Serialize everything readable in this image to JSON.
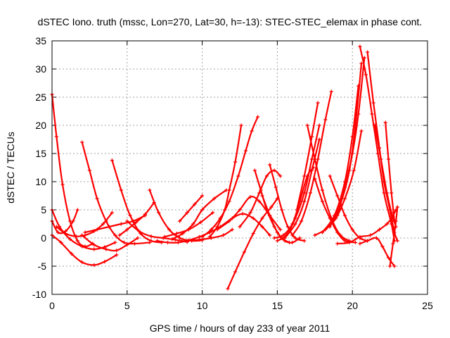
{
  "chart_data": {
    "type": "scatter",
    "title": "dSTEC Iono. truth (mssc, Lon=270, Lat=30, h=-13): STEC-STEC_elemax in phase cont.",
    "xlabel": "GPS time / hours of day 233 of year 2011",
    "ylabel": "dSTEC  / TECUs",
    "xlim": [
      0,
      25
    ],
    "ylim": [
      -10,
      35
    ],
    "xticks": [
      0,
      5,
      10,
      15,
      20,
      25
    ],
    "yticks": [
      -10,
      -5,
      0,
      5,
      10,
      15,
      20,
      25,
      30,
      35
    ],
    "grid": true,
    "legend": "none",
    "marker": "plus",
    "color": "#ff0000",
    "series": [
      {
        "x": [
          0.0,
          0.3,
          0.7,
          1.2,
          1.7,
          2.2,
          2.7
        ],
        "y": [
          25.5,
          18.0,
          9.5,
          3.0,
          -0.5,
          -1.5,
          -1.0
        ]
      },
      {
        "x": [
          0.0,
          0.6,
          1.3,
          2.0,
          2.8,
          3.5,
          4.3
        ],
        "y": [
          0.5,
          -0.8,
          -2.8,
          -4.3,
          -4.8,
          -4.2,
          -3.0
        ]
      },
      {
        "x": [
          0.0,
          0.5,
          1.2,
          2.0,
          2.8,
          3.5,
          4.2
        ],
        "y": [
          5.0,
          2.0,
          -0.2,
          -1.5,
          -2.0,
          -1.6,
          -0.8
        ]
      },
      {
        "x": [
          0.0,
          0.4,
          0.9,
          1.4,
          1.7
        ],
        "y": [
          3.0,
          1.0,
          1.2,
          3.0,
          5.0
        ]
      },
      {
        "x": [
          0.3,
          0.9,
          1.6,
          2.2,
          2.8,
          3.4,
          4.0
        ],
        "y": [
          2.0,
          0.8,
          0.3,
          0.5,
          1.2,
          2.5,
          4.5
        ]
      },
      {
        "x": [
          2.0,
          2.5,
          3.0,
          3.6,
          4.2,
          4.8,
          5.5,
          6.5
        ],
        "y": [
          17.0,
          12.0,
          7.0,
          3.0,
          0.5,
          -0.8,
          -1.0,
          -0.8
        ]
      },
      {
        "x": [
          2.0,
          2.8,
          3.6,
          4.3,
          5.0,
          5.7
        ],
        "y": [
          0.5,
          -1.2,
          -2.0,
          -2.2,
          -1.2,
          0.0
        ]
      },
      {
        "x": [
          2.2,
          3.0,
          3.8,
          4.6,
          5.4,
          6.2
        ],
        "y": [
          1.0,
          1.5,
          2.0,
          2.5,
          3.0,
          4.0
        ]
      },
      {
        "x": [
          4.0,
          4.6,
          5.2,
          5.9,
          6.6,
          7.3
        ],
        "y": [
          13.8,
          8.5,
          4.0,
          0.8,
          -0.5,
          -0.8
        ]
      },
      {
        "x": [
          4.5,
          5.0,
          5.6,
          6.2,
          6.8
        ],
        "y": [
          0.5,
          1.5,
          2.8,
          4.2,
          6.3
        ]
      },
      {
        "x": [
          5.0,
          5.8,
          6.6,
          7.4,
          8.2,
          9.0
        ],
        "y": [
          3.0,
          1.2,
          0.3,
          0.0,
          -0.3,
          -0.7
        ]
      },
      {
        "x": [
          6.5,
          7.1,
          7.8,
          8.5,
          9.3,
          10.0
        ],
        "y": [
          8.5,
          4.5,
          1.5,
          0.0,
          -0.5,
          -0.4
        ]
      },
      {
        "x": [
          7.0,
          7.7,
          8.4,
          9.1,
          9.8,
          10.5
        ],
        "y": [
          -0.5,
          -0.8,
          -0.8,
          -0.4,
          0.2,
          1.0
        ]
      },
      {
        "x": [
          7.5,
          8.3,
          9.1,
          9.9,
          10.7
        ],
        "y": [
          0.2,
          0.8,
          1.5,
          2.8,
          4.5
        ]
      },
      {
        "x": [
          8.0,
          8.7,
          9.4,
          10.0,
          10.8,
          11.6
        ],
        "y": [
          -0.2,
          0.8,
          2.5,
          5.0,
          7.0,
          8.5
        ]
      },
      {
        "x": [
          8.5,
          9.0,
          9.5,
          10.0
        ],
        "y": [
          3.0,
          4.5,
          6.0,
          7.5
        ]
      },
      {
        "x": [
          9.0,
          9.8,
          10.6,
          11.4,
          12.0
        ],
        "y": [
          -0.5,
          -0.3,
          0.0,
          0.5,
          1.5
        ]
      },
      {
        "x": [
          10.0,
          10.6,
          11.2,
          11.8,
          12.4,
          12.9,
          13.3,
          13.7
        ],
        "y": [
          0.2,
          1.5,
          3.5,
          6.5,
          11.0,
          15.5,
          19.0,
          21.5
        ]
      },
      {
        "x": [
          10.5,
          11.0,
          11.5,
          11.8,
          12.2,
          12.6
        ],
        "y": [
          0.2,
          2.0,
          5.0,
          8.5,
          13.5,
          20.0
        ]
      },
      {
        "x": [
          11.7,
          12.2,
          12.8,
          13.4,
          14.0,
          14.6,
          15.0
        ],
        "y": [
          -9.0,
          -6.0,
          -2.5,
          0.8,
          3.5,
          5.5,
          7.0
        ]
      },
      {
        "x": [
          10.5,
          11.2,
          12.0,
          12.7,
          13.4,
          14.0,
          14.5
        ],
        "y": [
          1.0,
          2.0,
          3.5,
          4.3,
          3.5,
          2.0,
          0.5
        ]
      },
      {
        "x": [
          11.0,
          11.8,
          12.5,
          13.2,
          13.8,
          14.5,
          15.2
        ],
        "y": [
          1.5,
          3.0,
          5.0,
          7.3,
          6.5,
          4.0,
          1.5
        ]
      },
      {
        "x": [
          12.5,
          13.2,
          13.8,
          14.3,
          14.8,
          15.2
        ],
        "y": [
          2.0,
          4.5,
          8.0,
          11.0,
          12.0,
          11.0
        ]
      },
      {
        "x": [
          13.5,
          13.9,
          14.3,
          14.8,
          15.3,
          15.8
        ],
        "y": [
          12.0,
          8.5,
          5.0,
          2.0,
          0.0,
          -0.8
        ]
      },
      {
        "x": [
          14.0,
          14.5,
          15.0,
          15.5,
          16.0,
          16.5
        ],
        "y": [
          7.5,
          4.0,
          1.0,
          -0.5,
          -0.8,
          0.0
        ]
      },
      {
        "x": [
          14.5,
          14.9,
          15.3,
          15.7,
          16.2,
          16.8
        ],
        "y": [
          13.0,
          9.0,
          5.0,
          2.0,
          0.0,
          -0.5
        ]
      },
      {
        "x": [
          14.8,
          15.4,
          16.0,
          16.5,
          17.0,
          17.4
        ],
        "y": [
          0.0,
          0.5,
          2.5,
          6.5,
          11.0,
          12.5
        ]
      },
      {
        "x": [
          15.0,
          15.6,
          16.2,
          16.8,
          17.3,
          17.8
        ],
        "y": [
          -0.5,
          0.5,
          3.5,
          8.0,
          14.0,
          20.0
        ]
      },
      {
        "x": [
          15.5,
          16.2,
          16.8,
          17.3,
          17.8
        ],
        "y": [
          0.0,
          2.5,
          6.5,
          12.0,
          17.5
        ]
      },
      {
        "x": [
          16.0,
          16.6,
          17.2,
          17.7,
          18.2,
          18.6
        ],
        "y": [
          0.5,
          3.0,
          8.0,
          14.0,
          21.0,
          26.0
        ]
      },
      {
        "x": [
          16.3,
          16.8,
          17.3,
          17.7
        ],
        "y": [
          5.0,
          11.0,
          18.0,
          24.0
        ]
      },
      {
        "x": [
          17.0,
          17.5,
          18.0,
          18.6,
          19.2,
          19.8
        ],
        "y": [
          20.0,
          14.0,
          8.5,
          3.5,
          0.5,
          -0.5
        ]
      },
      {
        "x": [
          17.5,
          18.0,
          18.5,
          19.0,
          19.5,
          20.2
        ],
        "y": [
          10.5,
          6.5,
          3.5,
          1.0,
          -0.5,
          -0.8
        ]
      },
      {
        "x": [
          18.5,
          19.0,
          19.5,
          20.0,
          20.5,
          21.0
        ],
        "y": [
          11.0,
          7.5,
          4.0,
          1.5,
          0.0,
          -0.5
        ]
      },
      {
        "x": [
          17.5,
          18.2,
          18.9,
          19.5,
          20.1,
          20.6
        ],
        "y": [
          0.5,
          1.5,
          3.5,
          7.0,
          12.0,
          19.0
        ]
      },
      {
        "x": [
          18.0,
          18.8,
          19.5,
          20.0,
          20.4
        ],
        "y": [
          1.0,
          4.0,
          10.0,
          18.0,
          27.0
        ]
      },
      {
        "x": [
          18.5,
          19.2,
          19.8,
          20.2,
          20.6
        ],
        "y": [
          2.0,
          6.0,
          12.0,
          20.0,
          31.0
        ]
      },
      {
        "x": [
          19.0,
          19.5,
          20.0,
          20.4,
          20.8
        ],
        "y": [
          4.0,
          9.0,
          15.0,
          22.0,
          32.0
        ]
      },
      {
        "x": [
          20.5,
          20.9,
          21.3,
          21.7,
          22.1,
          22.6,
          22.8
        ],
        "y": [
          34.0,
          29.0,
          22.0,
          15.0,
          8.0,
          2.5,
          -0.5
        ]
      },
      {
        "x": [
          21.0,
          21.4,
          21.8,
          22.1,
          22.5,
          22.8,
          23.0
        ],
        "y": [
          33.0,
          24.0,
          16.0,
          10.0,
          5.0,
          1.0,
          -0.5
        ]
      },
      {
        "x": [
          21.5,
          21.9,
          22.3,
          22.6,
          22.9
        ],
        "y": [
          20.0,
          14.0,
          8.0,
          4.5,
          2.0
        ]
      },
      {
        "x": [
          22.2,
          22.4,
          22.6,
          22.8
        ],
        "y": [
          20.5,
          14.0,
          8.0,
          3.0
        ]
      },
      {
        "x": [
          22.5,
          22.7,
          22.9,
          23.0
        ],
        "y": [
          -5.0,
          -1.0,
          3.0,
          5.5
        ]
      },
      {
        "x": [
          19.0,
          19.8,
          20.5,
          21.2,
          21.8,
          22.3,
          22.6,
          22.9
        ],
        "y": [
          -1.0,
          -0.8,
          0.2,
          0.5,
          1.5,
          2.5,
          3.5,
          5.0
        ]
      },
      {
        "x": [
          20.5,
          21.0,
          21.6,
          22.0,
          22.4,
          22.8
        ],
        "y": [
          -1.0,
          -0.5,
          0.0,
          -1.5,
          -3.5,
          -5.0
        ]
      }
    ]
  }
}
